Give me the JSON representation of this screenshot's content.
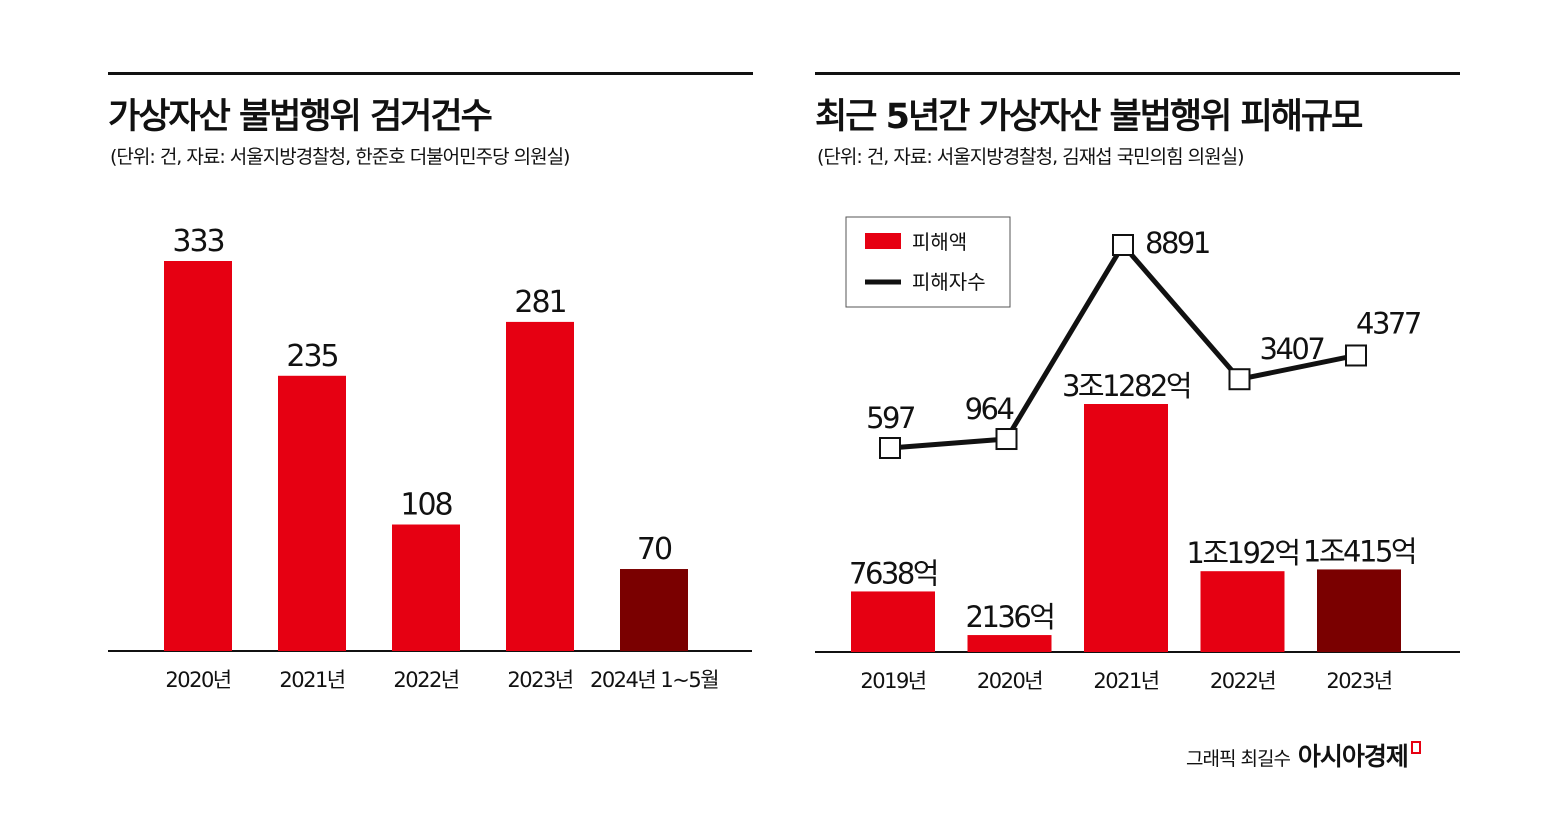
{
  "chart_data": [
    {
      "type": "bar",
      "title": "가상자산 불법행위 검거건수",
      "subtitle": "(단위: 건, 자료: 서울지방경찰청, 한준호 더불어민주당 의원실)",
      "categories": [
        "2020년",
        "2021년",
        "2022년",
        "2023년",
        "2024년 1~5월"
      ],
      "values": [
        333,
        235,
        108,
        281,
        70
      ],
      "data_labels": [
        "333",
        "235",
        "108",
        "281",
        "70"
      ],
      "colors": [
        "#e60012",
        "#e60012",
        "#e60012",
        "#e60012",
        "#7a0000"
      ],
      "ylim": [
        0,
        333
      ],
      "grid": false
    },
    {
      "type": "bar+line",
      "title": "최근 5년간 가상자산 불법행위 피해규모",
      "subtitle": "(단위: 건, 자료: 서울지방경찰청, 김재섭 국민의힘 의원실)",
      "categories": [
        "2019년",
        "2020년",
        "2021년",
        "2022년",
        "2023년"
      ],
      "legend_position": "top-left",
      "series": [
        {
          "name": "피해액",
          "type": "bar",
          "unit": "억",
          "values": [
            7638,
            2136,
            31282,
            10192,
            10415
          ],
          "data_labels": [
            "7638억",
            "2136억",
            "3조1282억",
            "1조192억",
            "1조415억"
          ],
          "colors": [
            "#e60012",
            "#e60012",
            "#e60012",
            "#e60012",
            "#7a0000"
          ]
        },
        {
          "name": "피해자수",
          "type": "line",
          "values": [
            597,
            964,
            8891,
            3407,
            4377
          ],
          "data_labels": [
            "597",
            "964",
            "8891",
            "3407",
            "4377"
          ],
          "color": "#111111"
        }
      ],
      "grid": false
    }
  ],
  "credit": {
    "text": "그래픽 최길수",
    "brand": "아시아경제",
    "brand_color": "#e60012"
  }
}
